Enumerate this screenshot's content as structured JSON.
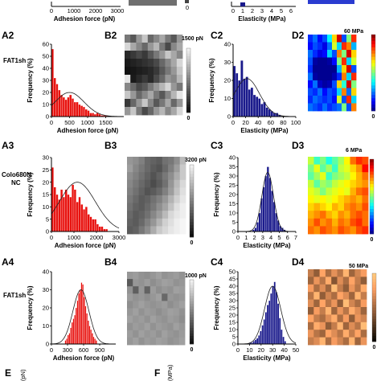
{
  "figure": {
    "panel_labels": {
      "A2": "A2",
      "B2": "B2",
      "C2": "C2",
      "D2": "D2",
      "A3": "A3",
      "B3": "B3",
      "C3": "C3",
      "D3": "D3",
      "A4": "A4",
      "B4": "B4",
      "C4": "C4",
      "D4": "D4",
      "E": "E",
      "F": "F"
    },
    "row_labels": {
      "row2": "FAT1sh",
      "row3_line1": "Colo680N",
      "row3_line2": "NC",
      "row4": "FAT1sh"
    },
    "top_partial": {
      "adhesion_xlabel": "Adhesion force (pN)",
      "adhesion_ticks": [
        "0",
        "1000",
        "2000",
        "3000"
      ],
      "bar_tick": "0",
      "elasticity_xlabel": "Elasticity (MPa)",
      "elasticity_ticks": [
        "0",
        "1",
        "2",
        "3",
        "4",
        "5",
        "6"
      ]
    },
    "scalebars": {
      "B2": {
        "top": "1500 pN",
        "bottom": "0"
      },
      "B3": {
        "top": "3200 pN",
        "bottom": "0"
      },
      "B4": {
        "top": "1000 pN",
        "bottom": "0"
      },
      "D2": {
        "top": "60 MPa",
        "bottom": "0"
      },
      "D3": {
        "top": "6 MPa",
        "bottom": "0"
      },
      "D4": {
        "top": "50 MPa",
        "bottom": "0"
      }
    },
    "bottom_partial": {
      "E_axis": "(pN)",
      "F_axis": "(MPa)"
    }
  },
  "colors": {
    "adhesion_bar": "#e8120f",
    "elasticity_bar": "#1a1a8c",
    "fit_line": "#222222"
  },
  "chart_data": [
    {
      "id": "A2",
      "type": "bar",
      "xlabel": "Adhesion force (pN)",
      "ylabel": "Frequency (%)",
      "xlim": [
        0,
        2000
      ],
      "ylim": [
        0,
        60
      ],
      "x_ticks": [
        "0",
        "500",
        "1000",
        "1500"
      ],
      "y_ticks": [
        "0",
        "10",
        "20",
        "30",
        "40",
        "50",
        "60"
      ],
      "bin_width": 62,
      "x": [
        31,
        93,
        155,
        217,
        279,
        341,
        403,
        465,
        527,
        589,
        651,
        713,
        775,
        837,
        899,
        961,
        1023,
        1085,
        1147,
        1209,
        1271,
        1333,
        1395,
        1457,
        1519
      ],
      "values": [
        56,
        32,
        27,
        22,
        18,
        16,
        14,
        16,
        18,
        15,
        12,
        12,
        10,
        9,
        8,
        6,
        5,
        3,
        3,
        2,
        3,
        2,
        1,
        1,
        1
      ],
      "fit": {
        "mean": 500,
        "sd": 400,
        "peak": 20
      }
    },
    {
      "id": "C2",
      "type": "bar",
      "xlabel": "Elasticity (MPa)",
      "ylabel": "Frequency (%)",
      "xlim": [
        0,
        100
      ],
      "ylim": [
        0,
        40
      ],
      "x_ticks": [
        "0",
        "20",
        "40",
        "60",
        "80",
        "100"
      ],
      "y_ticks": [
        "0",
        "10",
        "20",
        "30",
        "40"
      ],
      "bin_width": 4,
      "x": [
        2,
        6,
        10,
        14,
        18,
        22,
        26,
        30,
        34,
        38,
        42,
        46,
        50,
        54,
        58,
        62,
        66,
        70,
        74
      ],
      "values": [
        28,
        24,
        20,
        31,
        21,
        22,
        15,
        16,
        12,
        11,
        10,
        7,
        8,
        5,
        4,
        3,
        2,
        2,
        1
      ],
      "fit": {
        "mean": 22,
        "sd": 20,
        "peak": 21
      }
    },
    {
      "id": "A3",
      "type": "bar",
      "xlabel": "Adhesion force (pN)",
      "ylabel": "Frequency (%)",
      "xlim": [
        0,
        3000
      ],
      "ylim": [
        0,
        30
      ],
      "x_ticks": [
        "0",
        "1000",
        "2000",
        "3000"
      ],
      "y_ticks": [
        "0",
        "5",
        "10",
        "15",
        "20",
        "25",
        "30"
      ],
      "bin_width": 100,
      "x": [
        50,
        150,
        250,
        350,
        450,
        550,
        650,
        750,
        850,
        950,
        1050,
        1150,
        1250,
        1350,
        1450,
        1550,
        1650,
        1750,
        1850,
        1950,
        2050,
        2150,
        2250,
        2350,
        2450
      ],
      "values": [
        26,
        18,
        15,
        13,
        17,
        14,
        17,
        15,
        14,
        19,
        17,
        12,
        14,
        11,
        9,
        10,
        7,
        6,
        5,
        5,
        3,
        2,
        2,
        1,
        1
      ],
      "fit": {
        "mean": 1150,
        "sd": 800,
        "peak": 20
      }
    },
    {
      "id": "C3",
      "type": "bar",
      "xlabel": "Elasticity (MPa)",
      "ylabel": "Frequency (%)",
      "xlim": [
        0,
        7
      ],
      "ylim": [
        0,
        40
      ],
      "x_ticks": [
        "0",
        "1",
        "2",
        "3",
        "4",
        "5",
        "6",
        "7"
      ],
      "y_ticks": [
        "0",
        "5",
        "10",
        "15",
        "20",
        "25",
        "30",
        "35",
        "40"
      ],
      "bin_width": 0.25,
      "x": [
        1.875,
        2.125,
        2.375,
        2.625,
        2.875,
        3.125,
        3.375,
        3.625,
        3.875,
        4.125,
        4.375,
        4.625,
        4.875,
        5.125,
        5.375,
        5.625
      ],
      "values": [
        1,
        2,
        5,
        10,
        18,
        24,
        30,
        35,
        29,
        22,
        16,
        10,
        6,
        3,
        2,
        1
      ],
      "fit": {
        "mean": 3.6,
        "sd": 0.7,
        "peak": 32
      }
    },
    {
      "id": "A4",
      "type": "bar",
      "xlabel": "Adhesion force (pN)",
      "ylabel": "Frequency (%)",
      "xlim": [
        0,
        1200
      ],
      "ylim": [
        0,
        40
      ],
      "x_ticks": [
        "0",
        "300",
        "600",
        "900"
      ],
      "y_ticks": [
        "0",
        "10",
        "20",
        "30",
        "40"
      ],
      "bin_width": 25,
      "x": [
        262,
        287,
        312,
        337,
        362,
        387,
        412,
        437,
        462,
        487,
        512,
        537,
        562,
        587,
        612,
        637,
        662,
        687,
        712,
        737,
        762,
        787,
        812,
        837
      ],
      "values": [
        2,
        3,
        5,
        6,
        9,
        12,
        14,
        16,
        20,
        24,
        28,
        30,
        34,
        33,
        26,
        21,
        17,
        13,
        10,
        8,
        6,
        4,
        3,
        2
      ],
      "fit": {
        "mean": 550,
        "sd": 150,
        "peak": 30
      }
    },
    {
      "id": "C4",
      "type": "bar",
      "xlabel": "Elasticity (MPa)",
      "ylabel": "Frequency (%)",
      "xlim": [
        0,
        50
      ],
      "ylim": [
        0,
        50
      ],
      "x_ticks": [
        "0",
        "10",
        "20",
        "30",
        "40",
        "50"
      ],
      "y_ticks": [
        "0",
        "5",
        "10",
        "15",
        "20",
        "25",
        "30",
        "35",
        "40",
        "45",
        "50"
      ],
      "bin_width": 1.5,
      "x": [
        10.75,
        12.25,
        13.75,
        15.25,
        16.75,
        18.25,
        19.75,
        21.25,
        22.75,
        24.25,
        25.75,
        27.25,
        28.75,
        30.25,
        31.75,
        33.25,
        34.75,
        36.25,
        37.75,
        39.25,
        40.75
      ],
      "values": [
        1,
        1,
        2,
        3,
        4,
        6,
        9,
        13,
        17,
        22,
        27,
        30,
        35,
        40,
        43,
        36,
        28,
        18,
        10,
        5,
        2
      ],
      "fit": {
        "mean": 30,
        "sd": 7,
        "peak": 40
      }
    },
    {
      "id": "B2",
      "type": "heatmap",
      "colormap": "gray",
      "range": [
        0,
        1500
      ],
      "unit": "pN",
      "rows": 10,
      "cols": 10,
      "values": [
        [
          700,
          500,
          900,
          1200,
          600,
          800,
          1000,
          700,
          500,
          900
        ],
        [
          1300,
          1000,
          800,
          600,
          900,
          1100,
          700,
          400,
          800,
          1000
        ],
        [
          200,
          300,
          400,
          300,
          500,
          700,
          900,
          1200,
          1000,
          800
        ],
        [
          100,
          150,
          200,
          250,
          300,
          400,
          600,
          800,
          1000,
          1300
        ],
        [
          50,
          80,
          120,
          150,
          200,
          300,
          500,
          700,
          900,
          1200
        ],
        [
          1400,
          100,
          200,
          300,
          200,
          400,
          600,
          900,
          800,
          1100
        ],
        [
          800,
          600,
          400,
          500,
          700,
          900,
          1100,
          1300,
          900,
          700
        ],
        [
          1200,
          900,
          600,
          800,
          1000,
          700,
          500,
          800,
          1100,
          1400
        ],
        [
          300,
          600,
          900,
          1200,
          800,
          500,
          700,
          1000,
          600,
          900
        ],
        [
          900,
          1200,
          700,
          400,
          600,
          900,
          1100,
          800,
          1000,
          1300
        ]
      ]
    },
    {
      "id": "D2",
      "type": "heatmap",
      "colormap": "jet",
      "range": [
        0,
        60
      ],
      "unit": "MPa",
      "rows": 10,
      "cols": 10,
      "values": [
        [
          10,
          14,
          8,
          12,
          22,
          40,
          55,
          12,
          30,
          50
        ],
        [
          8,
          12,
          10,
          6,
          14,
          35,
          20,
          50,
          45,
          18
        ],
        [
          14,
          10,
          6,
          8,
          20,
          12,
          45,
          30,
          55,
          40
        ],
        [
          12,
          2,
          1,
          1,
          2,
          8,
          30,
          50,
          20,
          35
        ],
        [
          10,
          1,
          1,
          1,
          1,
          1,
          18,
          40,
          55,
          12
        ],
        [
          14,
          2,
          1,
          1,
          1,
          3,
          10,
          45,
          20,
          50
        ],
        [
          8,
          14,
          4,
          2,
          3,
          12,
          40,
          25,
          55,
          30
        ],
        [
          12,
          10,
          14,
          8,
          12,
          10,
          20,
          45,
          14,
          40
        ],
        [
          10,
          14,
          12,
          10,
          12,
          8,
          35,
          12,
          50,
          20
        ],
        [
          14,
          12,
          10,
          14,
          10,
          12,
          14,
          30,
          12,
          45
        ]
      ]
    },
    {
      "id": "B3",
      "type": "heatmap",
      "colormap": "gray",
      "range": [
        0,
        3200
      ],
      "unit": "pN",
      "rows": 10,
      "cols": 10,
      "values": [
        [
          1900,
          1800,
          1600,
          1300,
          1200,
          1100,
          1400,
          1500,
          1800,
          2400
        ],
        [
          2000,
          1700,
          1500,
          1300,
          1100,
          1000,
          1300,
          1600,
          2000,
          2600
        ],
        [
          1800,
          1600,
          1400,
          1200,
          1000,
          1200,
          1500,
          1800,
          2200,
          2600
        ],
        [
          1700,
          1500,
          1300,
          1100,
          900,
          1100,
          1400,
          1900,
          2400,
          2800
        ],
        [
          1600,
          1400,
          1200,
          1000,
          1100,
          1300,
          1600,
          2000,
          2500,
          2900
        ],
        [
          1500,
          1300,
          1100,
          1200,
          1400,
          1600,
          1900,
          2300,
          2700,
          3000
        ],
        [
          1400,
          1200,
          1100,
          1300,
          1500,
          1800,
          2100,
          2500,
          2900,
          3100
        ],
        [
          1300,
          1100,
          1200,
          1400,
          1700,
          2000,
          2400,
          2800,
          3000,
          3100
        ],
        [
          1200,
          1100,
          1300,
          1600,
          1900,
          2300,
          2700,
          2900,
          3100,
          3200
        ],
        [
          1100,
          1200,
          1500,
          1800,
          2200,
          2600,
          2800,
          3000,
          3100,
          3200
        ]
      ]
    },
    {
      "id": "D3",
      "type": "heatmap",
      "colormap": "jet",
      "range": [
        0,
        6
      ],
      "unit": "MPa",
      "rows": 10,
      "cols": 10,
      "values": [
        [
          3.4,
          2.6,
          3.0,
          2.4,
          2.8,
          3.2,
          3.8,
          4.6,
          5.0,
          4.8
        ],
        [
          3.0,
          3.6,
          2.8,
          3.2,
          2.6,
          3.4,
          3.6,
          4.0,
          4.4,
          5.2
        ],
        [
          2.8,
          3.2,
          3.6,
          2.6,
          3.0,
          3.2,
          3.4,
          3.8,
          4.2,
          4.6
        ],
        [
          3.4,
          2.8,
          3.2,
          3.0,
          3.4,
          3.6,
          3.8,
          4.0,
          4.2,
          4.4
        ],
        [
          3.6,
          3.4,
          3.0,
          3.4,
          3.6,
          3.8,
          3.6,
          4.2,
          4.6,
          4.8
        ],
        [
          3.8,
          3.6,
          3.8,
          3.6,
          3.8,
          4.0,
          4.2,
          4.4,
          4.2,
          4.6
        ],
        [
          4.0,
          4.2,
          4.0,
          3.8,
          4.2,
          4.0,
          4.4,
          4.6,
          4.4,
          4.8
        ],
        [
          4.2,
          4.4,
          4.6,
          4.2,
          4.0,
          4.4,
          4.2,
          4.6,
          4.8,
          4.6
        ],
        [
          4.4,
          4.8,
          4.4,
          4.6,
          4.2,
          4.6,
          4.4,
          4.8,
          5.0,
          4.6
        ],
        [
          4.6,
          4.4,
          4.8,
          4.6,
          4.4,
          4.8,
          4.6,
          4.4,
          4.8,
          5.0
        ]
      ]
    },
    {
      "id": "B4",
      "type": "heatmap",
      "colormap": "gray",
      "range": [
        0,
        1000
      ],
      "unit": "pN",
      "rows": 10,
      "cols": 10,
      "values": [
        [
          600,
          620,
          580,
          560,
          600,
          640,
          580,
          600,
          620,
          580
        ],
        [
          340,
          600,
          580,
          620,
          560,
          600,
          640,
          620,
          580,
          600
        ],
        [
          580,
          360,
          600,
          380,
          620,
          560,
          600,
          580,
          640,
          620
        ],
        [
          620,
          580,
          600,
          560,
          600,
          640,
          400,
          600,
          580,
          600
        ],
        [
          560,
          600,
          640,
          600,
          580,
          600,
          620,
          560,
          600,
          640
        ],
        [
          600,
          640,
          580,
          620,
          600,
          560,
          600,
          640,
          620,
          580
        ],
        [
          640,
          600,
          620,
          580,
          640,
          600,
          580,
          620,
          600,
          560
        ],
        [
          580,
          620,
          600,
          640,
          580,
          620,
          600,
          580,
          640,
          600
        ],
        [
          620,
          580,
          640,
          600,
          620,
          580,
          640,
          600,
          580,
          620
        ],
        [
          600,
          640,
          580,
          620,
          600,
          640,
          620,
          580,
          600,
          640
        ]
      ]
    },
    {
      "id": "D4",
      "type": "heatmap",
      "colormap": "copper",
      "range": [
        0,
        50
      ],
      "unit": "MPa",
      "rows": 10,
      "cols": 10,
      "values": [
        [
          30,
          22,
          40,
          26,
          35,
          28,
          44,
          24,
          32,
          38
        ],
        [
          24,
          36,
          28,
          42,
          20,
          34,
          26,
          40,
          30,
          22
        ],
        [
          38,
          26,
          34,
          24,
          46,
          30,
          22,
          36,
          28,
          42
        ],
        [
          28,
          44,
          22,
          32,
          26,
          40,
          34,
          24,
          44,
          30
        ],
        [
          34,
          24,
          40,
          28,
          36,
          22,
          46,
          32,
          26,
          38
        ],
        [
          22,
          38,
          30,
          44,
          24,
          36,
          28,
          42,
          34,
          24
        ],
        [
          40,
          30,
          26,
          34,
          42,
          26,
          38,
          22,
          36,
          32
        ],
        [
          26,
          42,
          36,
          22,
          30,
          44,
          24,
          34,
          28,
          46
        ],
        [
          36,
          28,
          24,
          40,
          34,
          28,
          42,
          30,
          40,
          26
        ],
        [
          30,
          34,
          44,
          26,
          38,
          32,
          26,
          44,
          24,
          36
        ]
      ]
    }
  ]
}
